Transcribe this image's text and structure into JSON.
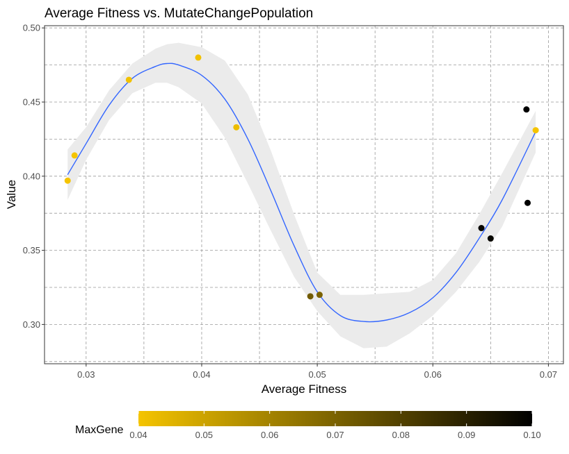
{
  "chart_data": {
    "type": "scatter",
    "title": "Average Fitness vs. MutateChangePopulation",
    "xlabel": "Average Fitness",
    "ylabel": "Value",
    "xlim": [
      0.0264,
      0.0713
    ],
    "ylim": [
      0.2735,
      0.5015
    ],
    "xticks": [
      0.03,
      0.04,
      0.05,
      0.06,
      0.07
    ],
    "xtick_labels": [
      "0.03",
      "0.04",
      "0.05",
      "0.06",
      "0.07"
    ],
    "yticks": [
      0.3,
      0.35,
      0.4,
      0.45,
      0.5
    ],
    "ytick_labels": [
      "0.30",
      "0.35",
      "0.40",
      "0.45",
      "0.50"
    ],
    "grid": true,
    "grid_style": "dashed",
    "points": [
      {
        "x": 0.0284,
        "y": 0.397,
        "maxgene": 0.04
      },
      {
        "x": 0.029,
        "y": 0.414,
        "maxgene": 0.04
      },
      {
        "x": 0.0337,
        "y": 0.465,
        "maxgene": 0.041
      },
      {
        "x": 0.0397,
        "y": 0.48,
        "maxgene": 0.041
      },
      {
        "x": 0.043,
        "y": 0.433,
        "maxgene": 0.042
      },
      {
        "x": 0.0494,
        "y": 0.319,
        "maxgene": 0.072
      },
      {
        "x": 0.0502,
        "y": 0.32,
        "maxgene": 0.07
      },
      {
        "x": 0.0642,
        "y": 0.365,
        "maxgene": 0.098
      },
      {
        "x": 0.065,
        "y": 0.358,
        "maxgene": 0.098
      },
      {
        "x": 0.0681,
        "y": 0.445,
        "maxgene": 0.1
      },
      {
        "x": 0.0682,
        "y": 0.382,
        "maxgene": 0.1
      },
      {
        "x": 0.0689,
        "y": 0.431,
        "maxgene": 0.04
      }
    ],
    "smooth_line": {
      "x": [
        0.0284,
        0.03,
        0.032,
        0.034,
        0.036,
        0.037,
        0.038,
        0.04,
        0.042,
        0.044,
        0.046,
        0.048,
        0.05,
        0.052,
        0.054,
        0.056,
        0.058,
        0.06,
        0.062,
        0.064,
        0.066,
        0.0689
      ],
      "y": [
        0.401,
        0.422,
        0.448,
        0.466,
        0.474,
        0.476,
        0.475,
        0.468,
        0.452,
        0.425,
        0.39,
        0.353,
        0.322,
        0.306,
        0.302,
        0.303,
        0.308,
        0.318,
        0.335,
        0.358,
        0.384,
        0.43
      ]
    },
    "confidence_band": {
      "lower": [
        0.384,
        0.411,
        0.438,
        0.456,
        0.463,
        0.463,
        0.46,
        0.449,
        0.426,
        0.395,
        0.363,
        0.332,
        0.309,
        0.292,
        0.284,
        0.285,
        0.294,
        0.306,
        0.322,
        0.342,
        0.366,
        0.416
      ],
      "upper": [
        0.418,
        0.433,
        0.458,
        0.476,
        0.486,
        0.489,
        0.49,
        0.487,
        0.478,
        0.455,
        0.417,
        0.374,
        0.335,
        0.32,
        0.32,
        0.321,
        0.322,
        0.33,
        0.348,
        0.374,
        0.402,
        0.444
      ]
    },
    "colors": {
      "line": "#3366ff",
      "band": "#ebebeb",
      "grid": "#999999",
      "panel_border": "#333333",
      "gradient_low": "#f5c400",
      "gradient_high": "#000000"
    },
    "legend": {
      "title": "MaxGene",
      "position": "bottom",
      "range": [
        0.04,
        0.1
      ],
      "ticks": [
        0.04,
        0.05,
        0.06,
        0.07,
        0.08,
        0.09,
        0.1
      ],
      "tick_labels": [
        "0.04",
        "0.05",
        "0.06",
        "0.07",
        "0.08",
        "0.09",
        "0.10"
      ]
    }
  }
}
